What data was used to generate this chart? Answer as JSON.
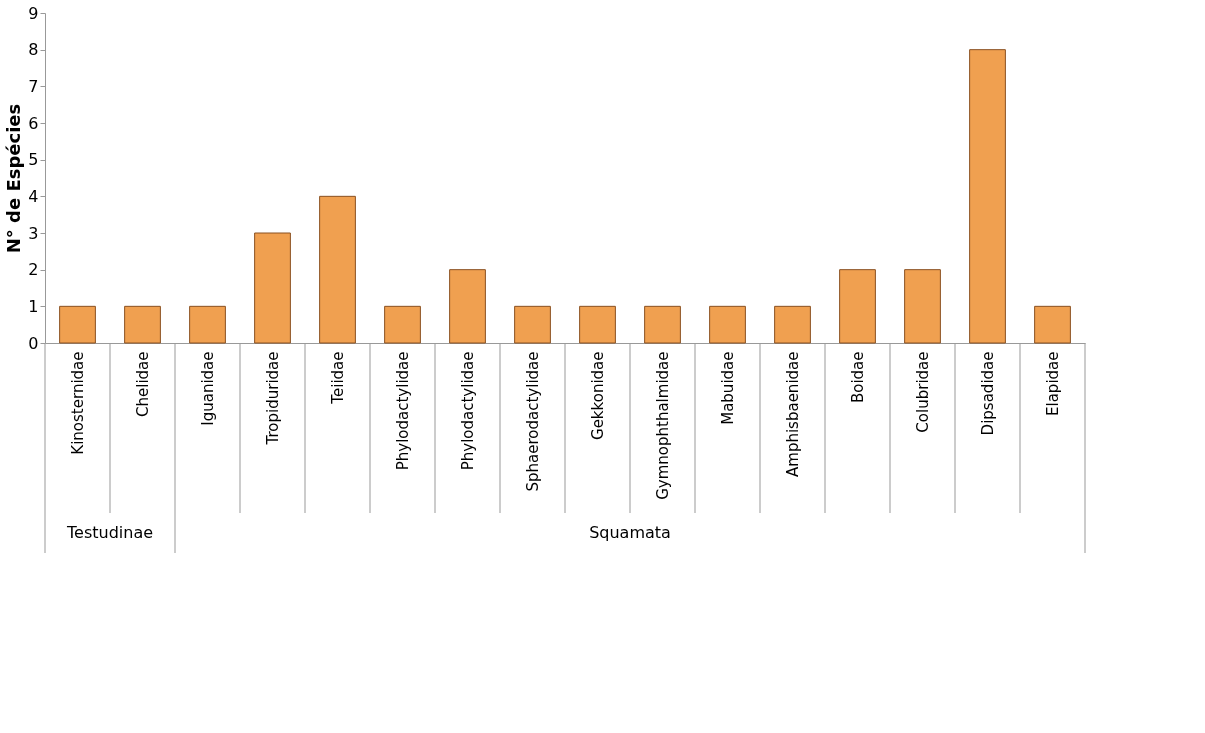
{
  "chart_data": {
    "type": "bar",
    "categories": [
      "Kinosternidae",
      "Chelidae",
      "Iguanidae",
      "Tropiduridae",
      "Teiidae",
      "Phylodactylidae",
      "Phylodactylidae",
      "Sphaerodactylidae",
      "Gekkonidae",
      "Gymnophthalmidae",
      "Mabuidae",
      "Amphisbaenidae",
      "Boidae",
      "Colubridae",
      "Dipsadidae",
      "Elapidae"
    ],
    "values": [
      1,
      1,
      1,
      3,
      4,
      1,
      2,
      1,
      1,
      1,
      1,
      1,
      2,
      2,
      8,
      1
    ],
    "color": "#f0a050",
    "ylabel": "N° de Espécies",
    "ylim": [
      0,
      9
    ],
    "yticks": [
      0,
      1,
      2,
      3,
      4,
      5,
      6,
      7,
      8,
      9
    ],
    "annotations": [
      "Testudinae",
      "Squamata"
    ],
    "grid": false
  }
}
